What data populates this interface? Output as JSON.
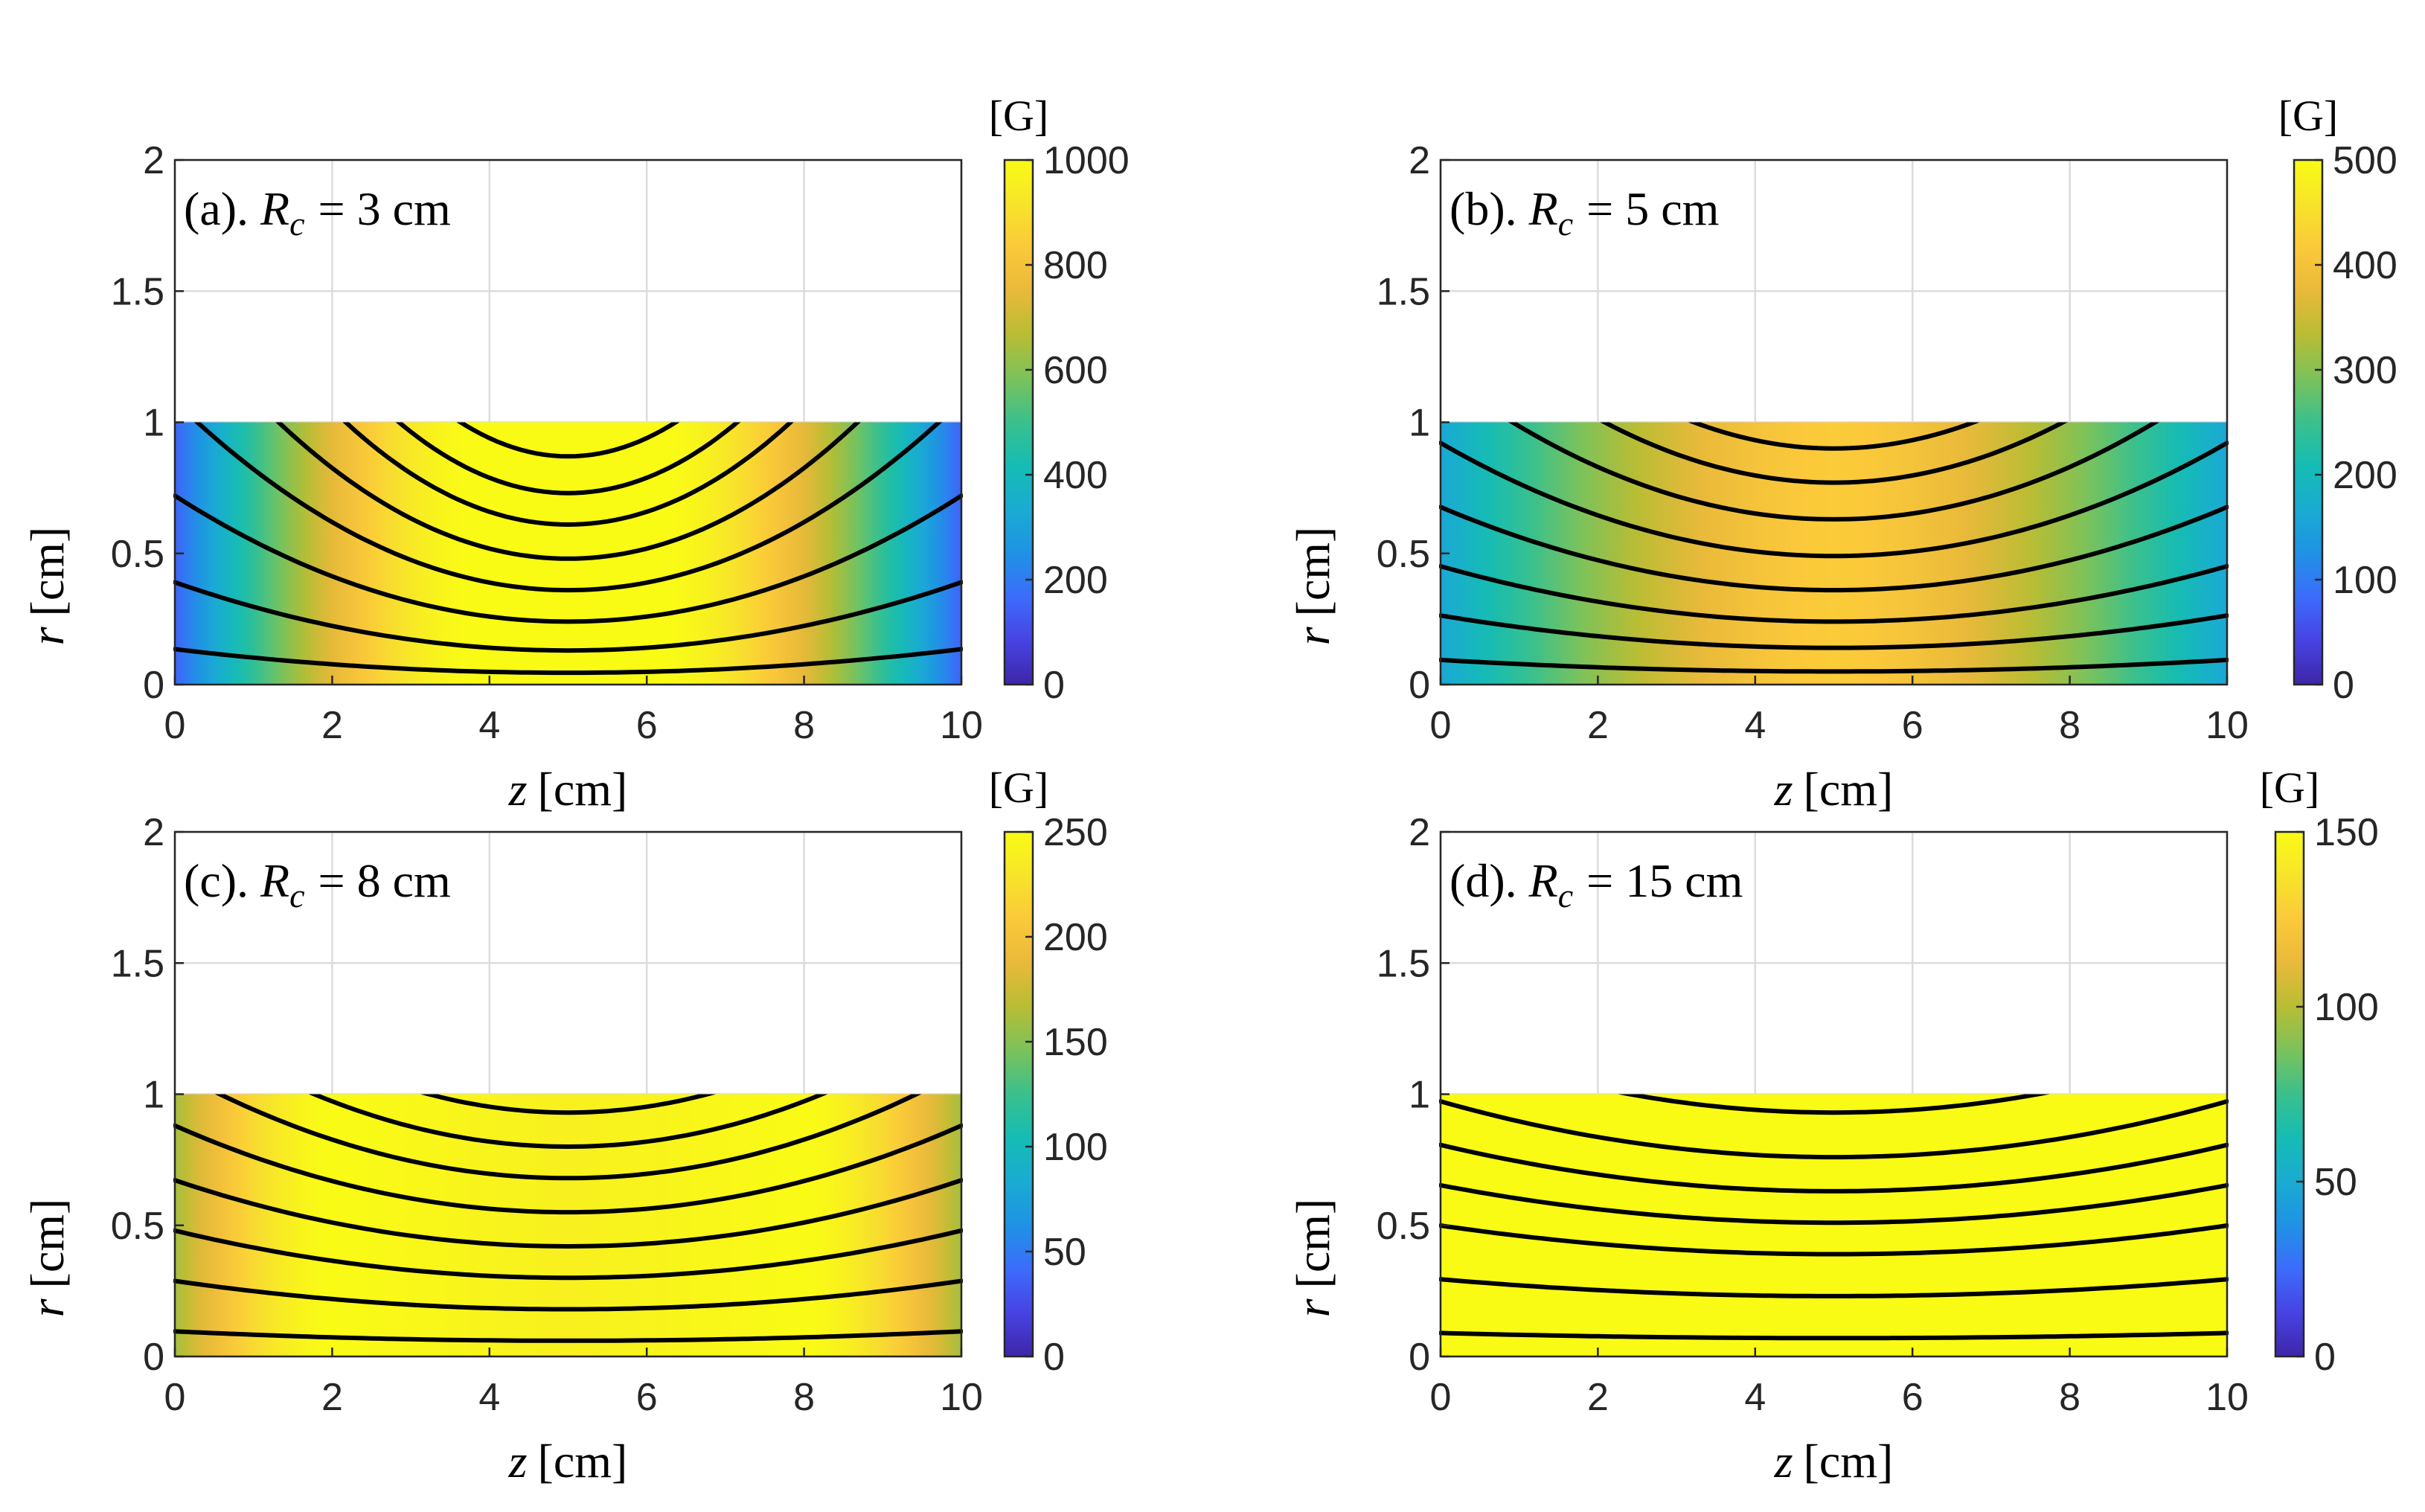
{
  "colormap": [
    "#3e26a8",
    "#4743e3",
    "#3c6cfc",
    "#1f92e5",
    "#1aabd2",
    "#15bcb4",
    "#3ac08d",
    "#7bc25b",
    "#b8bd34",
    "#e9b93a",
    "#fbc93a",
    "#f7e42a",
    "#f9fb15"
  ],
  "chart_data": [
    {
      "type": "heatmap",
      "panel": "(a).",
      "param": "R",
      "param_sub": "c",
      "param_value": "= 3 cm",
      "xlabel_var": "z",
      "xlabel_unit": "[cm]",
      "ylabel_var": "r",
      "ylabel_unit": "[cm]",
      "xlim": [
        0,
        10
      ],
      "ylim": [
        0,
        2
      ],
      "xticks": [
        "0",
        "2",
        "4",
        "6",
        "8",
        "10"
      ],
      "yticks": [
        "0",
        "0.5",
        "1",
        "1.5",
        "2"
      ],
      "data_region": {
        "z": [
          0,
          10
        ],
        "r": [
          0,
          1
        ]
      },
      "colorbar_label": "[G]",
      "clim": [
        0,
        1000
      ],
      "cticks": [
        "0",
        "200",
        "400",
        "600",
        "800",
        "1000"
      ],
      "center_field_G": 1000,
      "edge_field_G": 150,
      "peak_offset_cm": 1.2,
      "field_lines_r0": [
        0.045,
        0.13,
        0.24,
        0.36,
        0.48,
        0.61,
        0.73,
        0.87
      ],
      "line_strength": 0.5
    },
    {
      "type": "heatmap",
      "panel": "(b).",
      "param": "R",
      "param_sub": "c",
      "param_value": "= 5 cm",
      "xlabel_var": "z",
      "xlabel_unit": "[cm]",
      "ylabel_var": "r",
      "ylabel_unit": "[cm]",
      "xlim": [
        0,
        10
      ],
      "ylim": [
        0,
        2
      ],
      "xticks": [
        "0",
        "2",
        "4",
        "6",
        "8",
        "10"
      ],
      "yticks": [
        "0",
        "0.5",
        "1",
        "1.5",
        "2"
      ],
      "data_region": {
        "z": [
          0,
          10
        ],
        "r": [
          0,
          1
        ]
      },
      "colorbar_label": "[G]",
      "clim": [
        0,
        500
      ],
      "cticks": [
        "0",
        "100",
        "200",
        "300",
        "400",
        "500"
      ],
      "center_field_G": 420,
      "edge_field_G": 160,
      "peak_offset_cm": 0.0,
      "field_lines_r0": [
        0.05,
        0.14,
        0.24,
        0.36,
        0.49,
        0.63,
        0.77,
        0.9
      ],
      "line_strength": 0.22
    },
    {
      "type": "heatmap",
      "panel": "(c).",
      "param": "R",
      "param_sub": "c",
      "param_value": "= 8 cm",
      "xlabel_var": "z",
      "xlabel_unit": "[cm]",
      "ylabel_var": "r",
      "ylabel_unit": "[cm]",
      "xlim": [
        0,
        10
      ],
      "ylim": [
        0,
        2
      ],
      "xticks": [
        "0",
        "2",
        "4",
        "6",
        "8",
        "10"
      ],
      "yticks": [
        "0",
        "0.5",
        "1",
        "1.5",
        "2"
      ],
      "data_region": {
        "z": [
          0,
          10
        ],
        "r": [
          0,
          1
        ]
      },
      "colorbar_label": "[G]",
      "clim": [
        0,
        250
      ],
      "cticks": [
        "0",
        "50",
        "100",
        "150",
        "200",
        "250"
      ],
      "center_field_G": 240,
      "edge_field_G": 160,
      "peak_offset_cm": 3.0,
      "field_lines_r0": [
        0.06,
        0.18,
        0.3,
        0.42,
        0.55,
        0.68,
        0.8,
        0.93
      ],
      "line_strength": 0.15
    },
    {
      "type": "heatmap",
      "panel": "(d).",
      "param": "R",
      "param_sub": "c",
      "param_value": "= 15 cm",
      "xlabel_var": "z",
      "xlabel_unit": "[cm]",
      "ylabel_var": "r",
      "ylabel_unit": "[cm]",
      "xlim": [
        0,
        10
      ],
      "ylim": [
        0,
        2
      ],
      "xticks": [
        "0",
        "2",
        "4",
        "6",
        "8",
        "10"
      ],
      "yticks": [
        "0",
        "0.5",
        "1",
        "1.5",
        "2"
      ],
      "data_region": {
        "z": [
          0,
          10
        ],
        "r": [
          0,
          1
        ]
      },
      "colorbar_label": "[G]",
      "clim": [
        0,
        150
      ],
      "cticks": [
        "0",
        "50",
        "100",
        "150"
      ],
      "center_field_G": 150,
      "edge_field_G": 150,
      "peak_offset_cm": 0.0,
      "field_lines_r0": [
        0.07,
        0.23,
        0.39,
        0.51,
        0.63,
        0.76,
        0.93
      ],
      "line_strength": 0.07
    }
  ]
}
